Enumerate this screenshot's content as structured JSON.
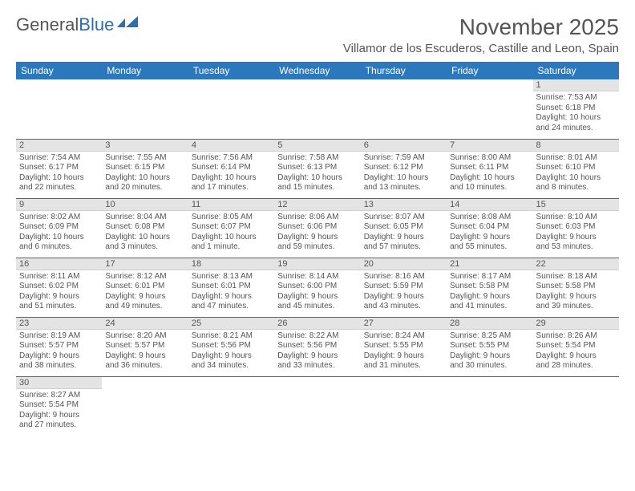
{
  "logo": {
    "part1": "General",
    "part2": "Blue"
  },
  "title": "November 2025",
  "location": "Villamor de los Escuderos, Castille and Leon, Spain",
  "colors": {
    "header_bg": "#2b78bd",
    "header_text": "#ffffff",
    "daynum_bg": "#e4e4e4",
    "body_text": "#555555",
    "row_border": "#2b6fb0",
    "logo_blue": "#2b6fb0"
  },
  "day_headers": [
    "Sunday",
    "Monday",
    "Tuesday",
    "Wednesday",
    "Thursday",
    "Friday",
    "Saturday"
  ],
  "weeks": [
    [
      null,
      null,
      null,
      null,
      null,
      null,
      {
        "n": "1",
        "sr": "Sunrise: 7:53 AM",
        "ss": "Sunset: 6:18 PM",
        "dl1": "Daylight: 10 hours",
        "dl2": "and 24 minutes."
      }
    ],
    [
      {
        "n": "2",
        "sr": "Sunrise: 7:54 AM",
        "ss": "Sunset: 6:17 PM",
        "dl1": "Daylight: 10 hours",
        "dl2": "and 22 minutes."
      },
      {
        "n": "3",
        "sr": "Sunrise: 7:55 AM",
        "ss": "Sunset: 6:15 PM",
        "dl1": "Daylight: 10 hours",
        "dl2": "and 20 minutes."
      },
      {
        "n": "4",
        "sr": "Sunrise: 7:56 AM",
        "ss": "Sunset: 6:14 PM",
        "dl1": "Daylight: 10 hours",
        "dl2": "and 17 minutes."
      },
      {
        "n": "5",
        "sr": "Sunrise: 7:58 AM",
        "ss": "Sunset: 6:13 PM",
        "dl1": "Daylight: 10 hours",
        "dl2": "and 15 minutes."
      },
      {
        "n": "6",
        "sr": "Sunrise: 7:59 AM",
        "ss": "Sunset: 6:12 PM",
        "dl1": "Daylight: 10 hours",
        "dl2": "and 13 minutes."
      },
      {
        "n": "7",
        "sr": "Sunrise: 8:00 AM",
        "ss": "Sunset: 6:11 PM",
        "dl1": "Daylight: 10 hours",
        "dl2": "and 10 minutes."
      },
      {
        "n": "8",
        "sr": "Sunrise: 8:01 AM",
        "ss": "Sunset: 6:10 PM",
        "dl1": "Daylight: 10 hours",
        "dl2": "and 8 minutes."
      }
    ],
    [
      {
        "n": "9",
        "sr": "Sunrise: 8:02 AM",
        "ss": "Sunset: 6:09 PM",
        "dl1": "Daylight: 10 hours",
        "dl2": "and 6 minutes."
      },
      {
        "n": "10",
        "sr": "Sunrise: 8:04 AM",
        "ss": "Sunset: 6:08 PM",
        "dl1": "Daylight: 10 hours",
        "dl2": "and 3 minutes."
      },
      {
        "n": "11",
        "sr": "Sunrise: 8:05 AM",
        "ss": "Sunset: 6:07 PM",
        "dl1": "Daylight: 10 hours",
        "dl2": "and 1 minute."
      },
      {
        "n": "12",
        "sr": "Sunrise: 8:06 AM",
        "ss": "Sunset: 6:06 PM",
        "dl1": "Daylight: 9 hours",
        "dl2": "and 59 minutes."
      },
      {
        "n": "13",
        "sr": "Sunrise: 8:07 AM",
        "ss": "Sunset: 6:05 PM",
        "dl1": "Daylight: 9 hours",
        "dl2": "and 57 minutes."
      },
      {
        "n": "14",
        "sr": "Sunrise: 8:08 AM",
        "ss": "Sunset: 6:04 PM",
        "dl1": "Daylight: 9 hours",
        "dl2": "and 55 minutes."
      },
      {
        "n": "15",
        "sr": "Sunrise: 8:10 AM",
        "ss": "Sunset: 6:03 PM",
        "dl1": "Daylight: 9 hours",
        "dl2": "and 53 minutes."
      }
    ],
    [
      {
        "n": "16",
        "sr": "Sunrise: 8:11 AM",
        "ss": "Sunset: 6:02 PM",
        "dl1": "Daylight: 9 hours",
        "dl2": "and 51 minutes."
      },
      {
        "n": "17",
        "sr": "Sunrise: 8:12 AM",
        "ss": "Sunset: 6:01 PM",
        "dl1": "Daylight: 9 hours",
        "dl2": "and 49 minutes."
      },
      {
        "n": "18",
        "sr": "Sunrise: 8:13 AM",
        "ss": "Sunset: 6:01 PM",
        "dl1": "Daylight: 9 hours",
        "dl2": "and 47 minutes."
      },
      {
        "n": "19",
        "sr": "Sunrise: 8:14 AM",
        "ss": "Sunset: 6:00 PM",
        "dl1": "Daylight: 9 hours",
        "dl2": "and 45 minutes."
      },
      {
        "n": "20",
        "sr": "Sunrise: 8:16 AM",
        "ss": "Sunset: 5:59 PM",
        "dl1": "Daylight: 9 hours",
        "dl2": "and 43 minutes."
      },
      {
        "n": "21",
        "sr": "Sunrise: 8:17 AM",
        "ss": "Sunset: 5:58 PM",
        "dl1": "Daylight: 9 hours",
        "dl2": "and 41 minutes."
      },
      {
        "n": "22",
        "sr": "Sunrise: 8:18 AM",
        "ss": "Sunset: 5:58 PM",
        "dl1": "Daylight: 9 hours",
        "dl2": "and 39 minutes."
      }
    ],
    [
      {
        "n": "23",
        "sr": "Sunrise: 8:19 AM",
        "ss": "Sunset: 5:57 PM",
        "dl1": "Daylight: 9 hours",
        "dl2": "and 38 minutes."
      },
      {
        "n": "24",
        "sr": "Sunrise: 8:20 AM",
        "ss": "Sunset: 5:57 PM",
        "dl1": "Daylight: 9 hours",
        "dl2": "and 36 minutes."
      },
      {
        "n": "25",
        "sr": "Sunrise: 8:21 AM",
        "ss": "Sunset: 5:56 PM",
        "dl1": "Daylight: 9 hours",
        "dl2": "and 34 minutes."
      },
      {
        "n": "26",
        "sr": "Sunrise: 8:22 AM",
        "ss": "Sunset: 5:56 PM",
        "dl1": "Daylight: 9 hours",
        "dl2": "and 33 minutes."
      },
      {
        "n": "27",
        "sr": "Sunrise: 8:24 AM",
        "ss": "Sunset: 5:55 PM",
        "dl1": "Daylight: 9 hours",
        "dl2": "and 31 minutes."
      },
      {
        "n": "28",
        "sr": "Sunrise: 8:25 AM",
        "ss": "Sunset: 5:55 PM",
        "dl1": "Daylight: 9 hours",
        "dl2": "and 30 minutes."
      },
      {
        "n": "29",
        "sr": "Sunrise: 8:26 AM",
        "ss": "Sunset: 5:54 PM",
        "dl1": "Daylight: 9 hours",
        "dl2": "and 28 minutes."
      }
    ],
    [
      {
        "n": "30",
        "sr": "Sunrise: 8:27 AM",
        "ss": "Sunset: 5:54 PM",
        "dl1": "Daylight: 9 hours",
        "dl2": "and 27 minutes."
      },
      null,
      null,
      null,
      null,
      null,
      null
    ]
  ]
}
